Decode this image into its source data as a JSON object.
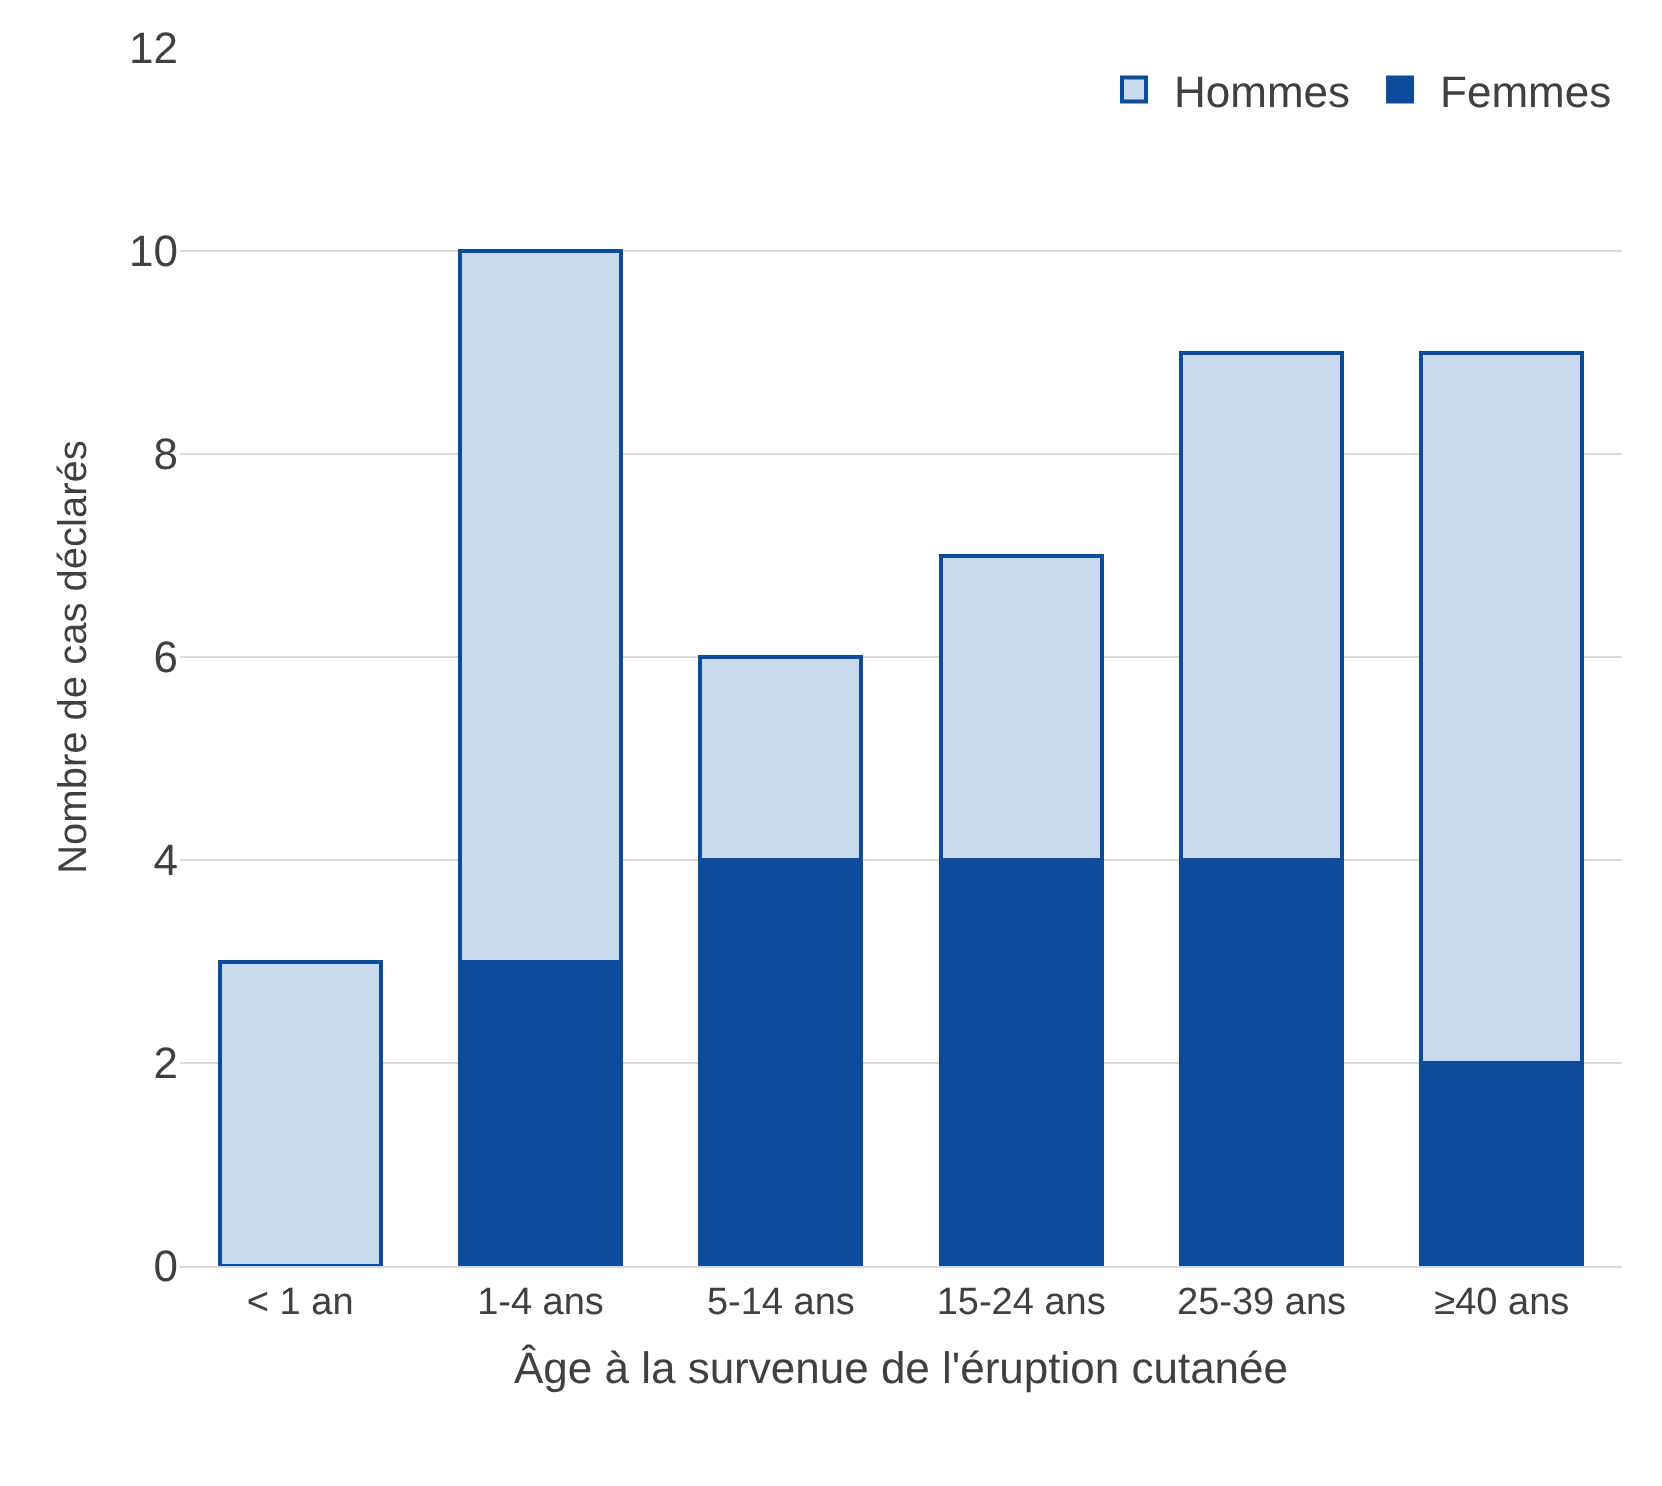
{
  "chart_data": {
    "type": "bar",
    "stacked": true,
    "xlabel": "Âge à la survenue de l'éruption cutanée",
    "ylabel": "Nombre de cas déclarés",
    "categories": [
      "< 1 an",
      "1-4 ans",
      "5-14 ans",
      "15-24 ans",
      "25-39 ans",
      "≥40 ans"
    ],
    "series": [
      {
        "name": "Femmes",
        "color": "#0d4c9b",
        "values": [
          0,
          3,
          4,
          4,
          4,
          2
        ]
      },
      {
        "name": "Hommes",
        "color": "#c9d9ee",
        "values": [
          3,
          7,
          2,
          3,
          5,
          7
        ]
      }
    ],
    "ylim": [
      0,
      12
    ],
    "yticks": [
      0,
      2,
      4,
      6,
      8,
      10,
      12
    ],
    "grid": "y",
    "legend": "top right"
  }
}
